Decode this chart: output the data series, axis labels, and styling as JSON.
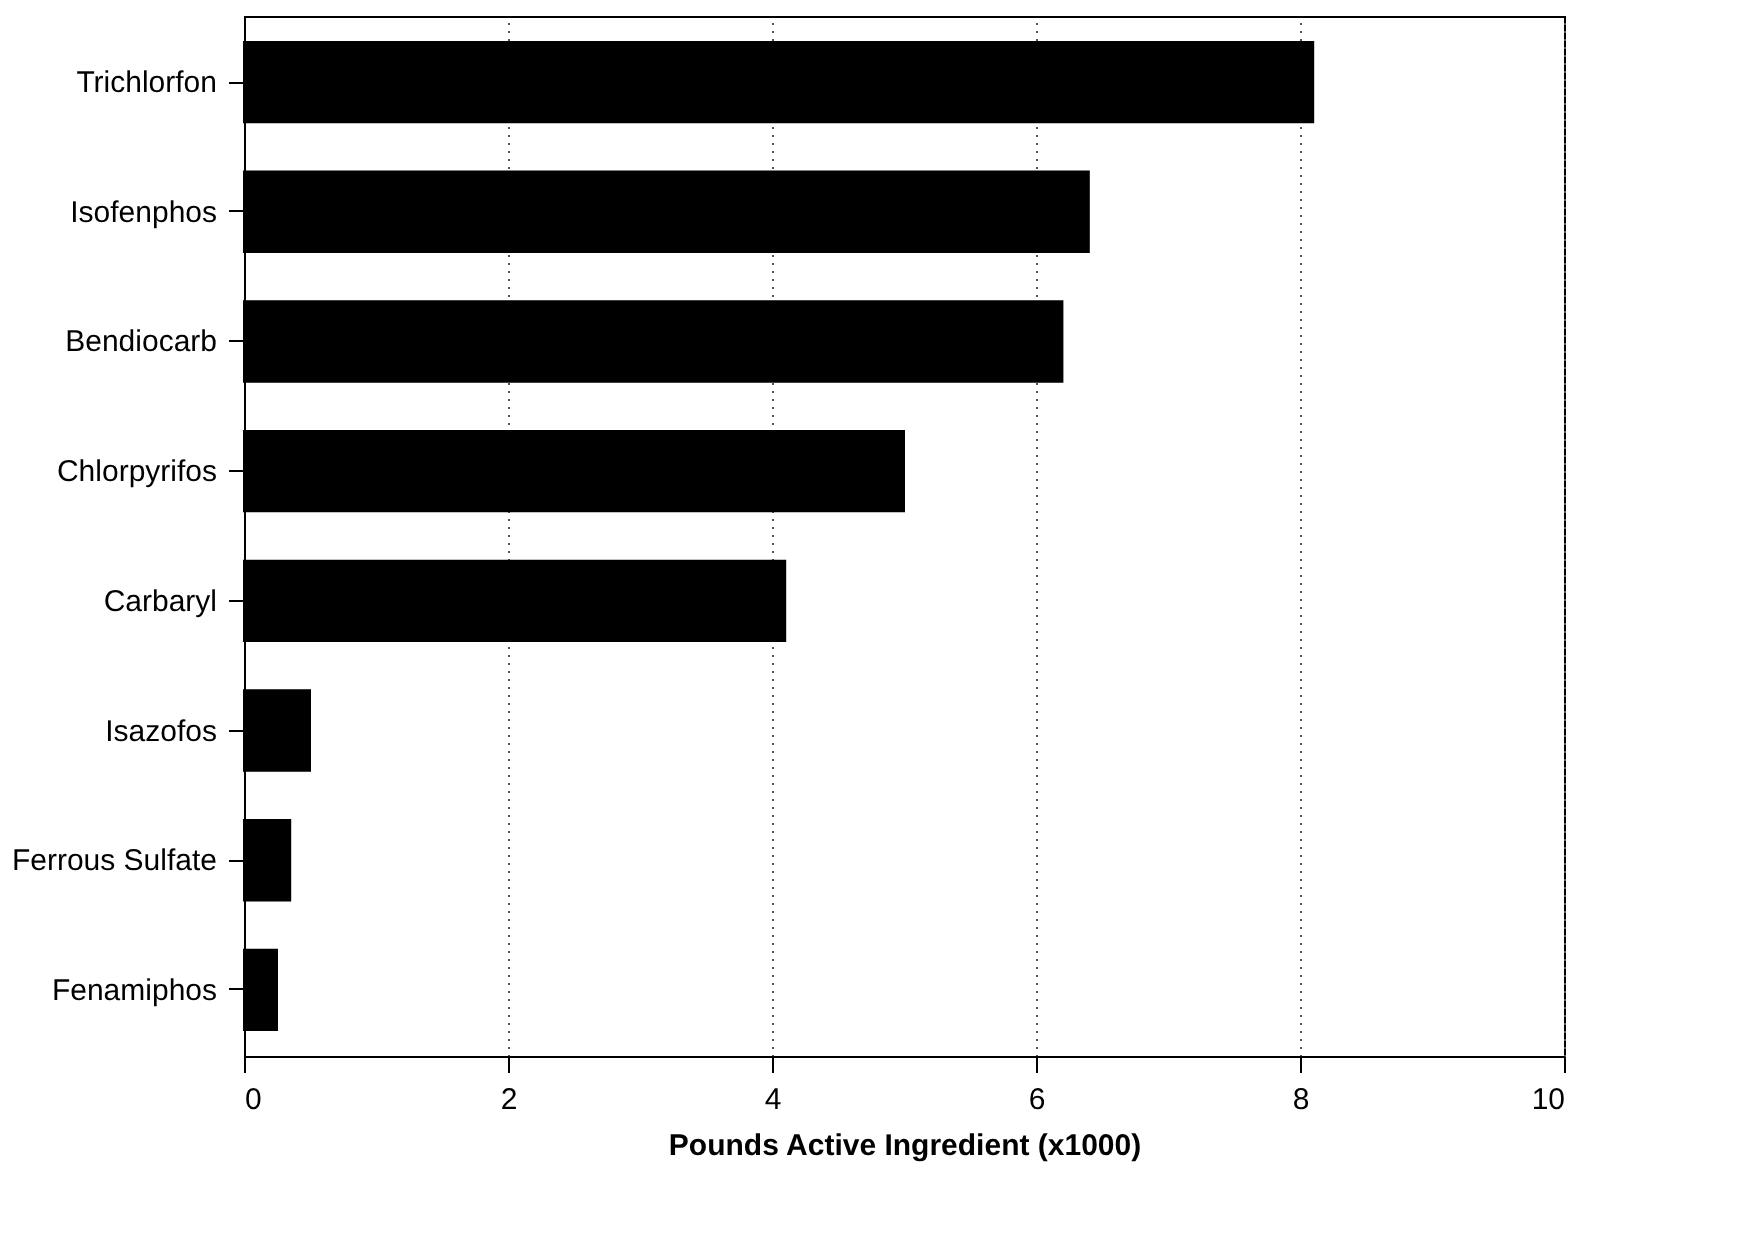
{
  "chart_data": {
    "type": "bar",
    "orientation": "horizontal",
    "xlabel": "Pounds Active Ingredient (x1000)",
    "categories": [
      "Trichlorfon",
      "Isofenphos",
      "Bendiocarb",
      "Chlorpyrifos",
      "Carbaryl",
      "Isazofos",
      "Ferrous Sulfate",
      "Fenamiphos"
    ],
    "values": [
      8.1,
      6.4,
      6.2,
      5.0,
      4.1,
      0.5,
      0.35,
      0.25
    ],
    "color": "#000000",
    "xlim": [
      0,
      10
    ],
    "xticks": [
      0,
      2,
      4,
      6,
      8,
      10
    ],
    "grid": "x",
    "line_style": "dotted"
  }
}
